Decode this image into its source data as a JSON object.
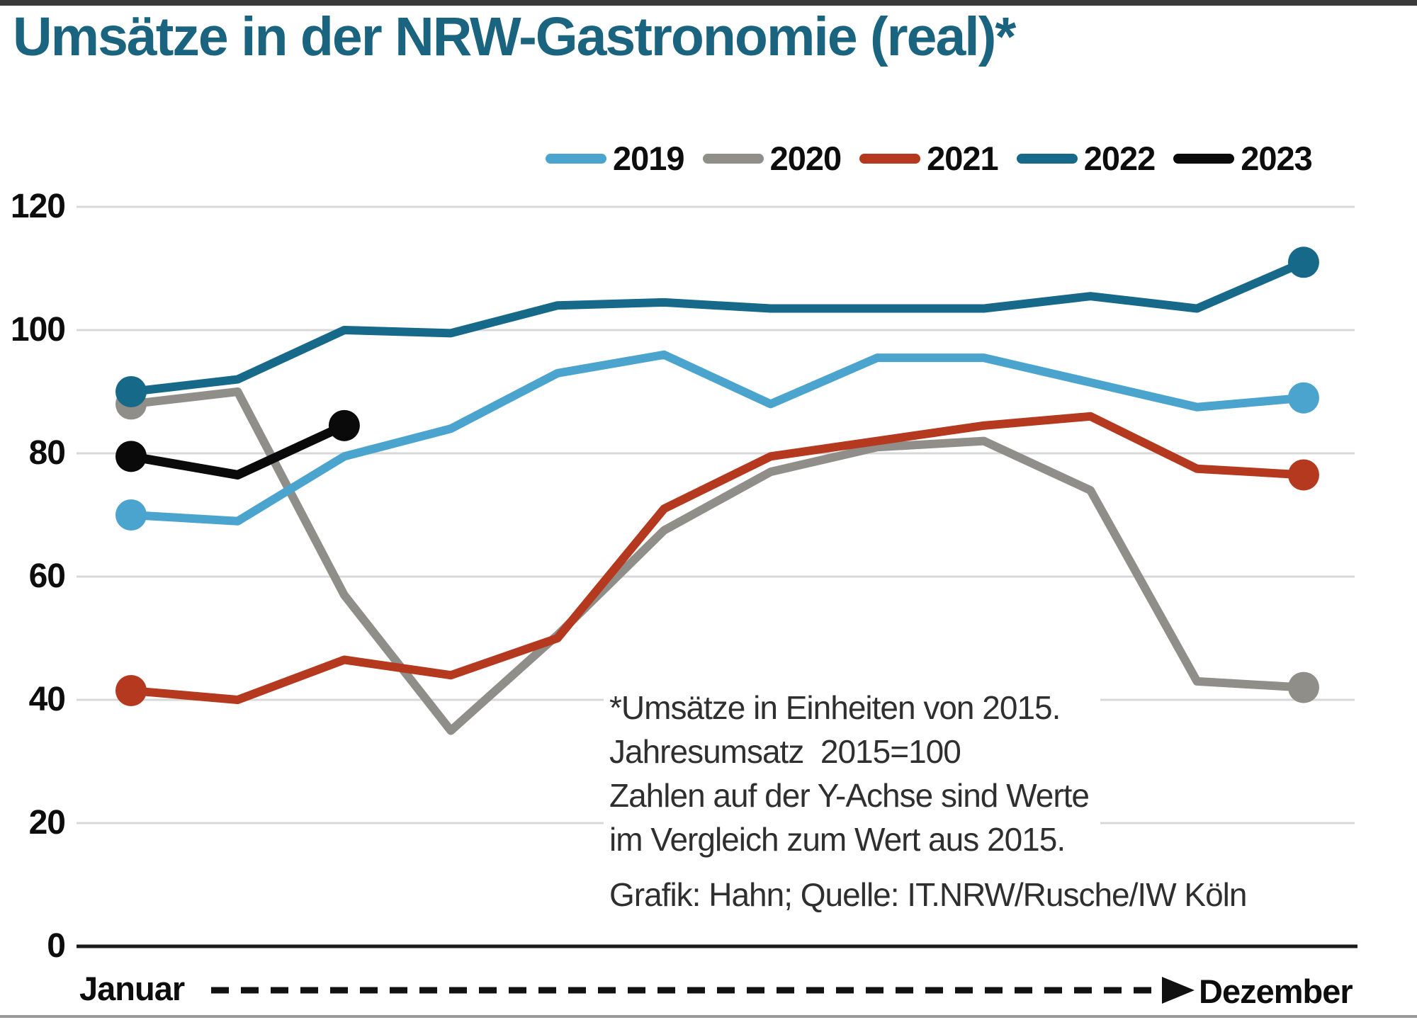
{
  "page": {
    "title": "Umsätze in der NRW-Gastronomie (real)*"
  },
  "axis": {
    "x_start": "Januar",
    "x_end": "Dezember"
  },
  "annotation": {
    "lines": [
      "*Umsätze in Einheiten von 2015.",
      "Jahresumsatz  2015=100",
      "Zahlen auf der Y-Achse sind Werte",
      "im Vergleich zum Wert aus 2015."
    ],
    "source": "Grafik: Hahn; Quelle: IT.NRW/Rusche/IW Köln"
  },
  "colors": {
    "title": "#1A6480",
    "grid": "#D8D8D8",
    "axis": "#1A1A1A",
    "arrow": "#111111",
    "annotation_text": "#2F2F2F"
  },
  "chart_data": {
    "type": "line",
    "title": "Umsätze in der NRW-Gastronomie (real)*",
    "xlabel": "",
    "ylabel": "",
    "x_months": 12,
    "x_tick_labels_visible": [
      "Januar",
      "Dezember"
    ],
    "ylim": [
      0,
      120
    ],
    "yticks": [
      0,
      20,
      40,
      60,
      80,
      100,
      120
    ],
    "grid": true,
    "legend_position": "top",
    "note": "Index values, 2015 annual revenue = 100; the 2023 series ends in March",
    "series": [
      {
        "name": "2019",
        "color": "#4BA4CE",
        "values": [
          70,
          69,
          79.5,
          84,
          93,
          96,
          88,
          95.5,
          95.5,
          91.5,
          87.5,
          89
        ]
      },
      {
        "name": "2020",
        "color": "#908E88",
        "values": [
          88,
          90,
          57,
          35,
          50.5,
          67.5,
          77,
          81,
          82,
          74,
          43,
          42
        ]
      },
      {
        "name": "2021",
        "color": "#B5391E",
        "values": [
          41.5,
          40,
          46.5,
          44,
          50,
          71,
          79.5,
          82,
          84.5,
          86,
          77.5,
          76.5
        ]
      },
      {
        "name": "2022",
        "color": "#17698A",
        "values": [
          90,
          92,
          100,
          99.5,
          104,
          104.5,
          103.5,
          103.5,
          103.5,
          105.5,
          103.5,
          111
        ]
      },
      {
        "name": "2023",
        "color": "#0A0A0A",
        "values": [
          79.5,
          76.5,
          84.5
        ]
      }
    ]
  }
}
